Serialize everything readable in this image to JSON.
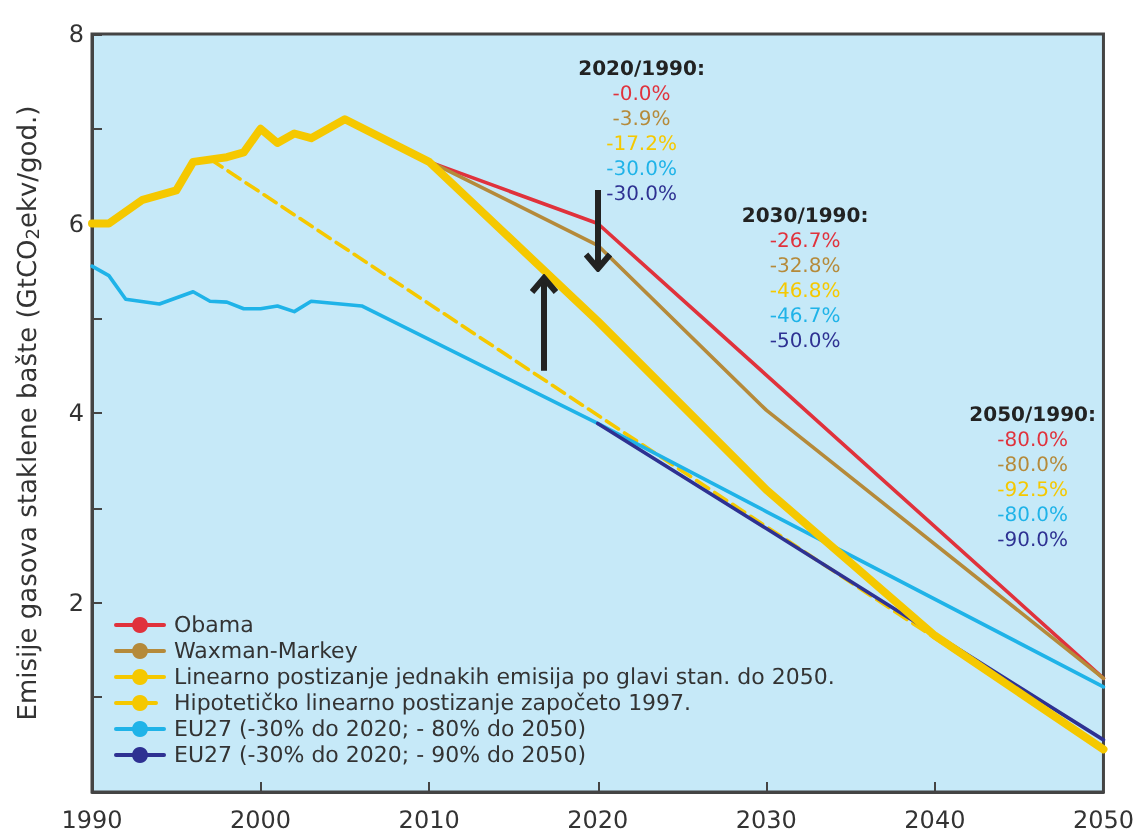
{
  "chart_data": {
    "type": "line",
    "ylabel": "Emisije gasova staklene bašte (GtCO$_{2}$ekv/god.)",
    "xlim": [
      1990,
      2050
    ],
    "xticks": [
      1990,
      2000,
      2010,
      2020,
      2030,
      2040,
      2050
    ],
    "ylim": [
      0,
      8
    ],
    "yticks": [
      {
        "value": 1,
        "label": null
      },
      2,
      {
        "value": 3,
        "label": null
      },
      4,
      {
        "value": 5,
        "label": null
      },
      6,
      {
        "value": 7,
        "label": null
      },
      8
    ],
    "grid": false,
    "legend": "bottom left",
    "marker": "none",
    "series": [
      {
        "name": "Obama",
        "color": "#e0323c",
        "x": [
          2010,
          2020,
          2030,
          2050
        ],
        "values": [
          6.65,
          6.0,
          4.4,
          1.2
        ]
      },
      {
        "name": "Waxman-Markey",
        "color": "#b58a3a",
        "x": [
          2005,
          2020,
          2030,
          2050
        ],
        "values": [
          7.1,
          5.77,
          4.03,
          1.2
        ]
      },
      {
        "name": "Linearno postizanje jednakih emisija po glavi stan. do 2050.",
        "color": "#f5c800",
        "x": [
          1990,
          1991,
          1993,
          1995,
          1996,
          1998,
          1999,
          2000,
          2001,
          2002,
          2003,
          2004,
          2005,
          2010,
          2020,
          2030,
          2040,
          2050
        ],
        "values": [
          6.0,
          6.0,
          6.25,
          6.35,
          6.65,
          6.7,
          6.75,
          7.0,
          6.85,
          6.95,
          6.9,
          7.0,
          7.1,
          6.65,
          4.97,
          3.19,
          1.65,
          0.45
        ]
      },
      {
        "name": "Hipotetičko linearno postizanje započeto 1997.",
        "color": "#f5c800",
        "line_style": "dashed",
        "x": [
          1997,
          2050
        ],
        "values": [
          6.68,
          0.45
        ]
      },
      {
        "name": "EU27 (-30% do 2020; - 80% do 2050)",
        "color": "#1fb3e8",
        "x": [
          1990,
          1991,
          1992,
          1994,
          1996,
          1997,
          1998,
          1999,
          2000,
          2001,
          2002,
          2003,
          2006,
          2020,
          2030,
          2050
        ],
        "values": [
          5.55,
          5.45,
          5.2,
          5.15,
          5.28,
          5.18,
          5.17,
          5.1,
          5.1,
          5.13,
          5.07,
          5.18,
          5.13,
          3.89,
          2.96,
          1.11
        ]
      },
      {
        "name": "EU27 (-30% do 2020; - 90% do 2050)",
        "color": "#2e3192",
        "x": [
          2020,
          2030,
          2050
        ],
        "values": [
          3.89,
          2.78,
          0.55
        ]
      }
    ],
    "annotations": [
      "2020/1990:\n-0.0%\n-3.9%\n-17.2%\n-30.0%\n-30.0%",
      "2030/1990:\n-26.7%\n-32.8%\n-46.8%\n-46.7%\n-50.0%",
      "2050/1990:\n-80.0%\n-80.0%\n-92.5%\n-80.0%\n-90.0%"
    ]
  }
}
